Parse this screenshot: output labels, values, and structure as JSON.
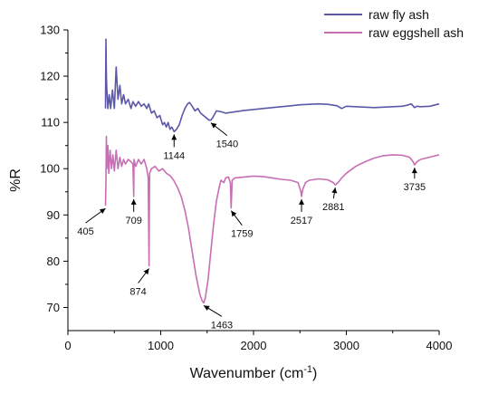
{
  "chart_data": {
    "type": "line",
    "title": "",
    "xlabel": "Wavenumber (cm",
    "xlabel_sup": "-1",
    "xlabel_close": ")",
    "ylabel": "%R",
    "xlim": [
      0,
      4000
    ],
    "ylim": [
      65,
      130
    ],
    "x_ticks": [
      0,
      1000,
      2000,
      3000,
      4000
    ],
    "y_ticks": [
      70,
      80,
      90,
      100,
      110,
      120,
      130
    ],
    "legend_position": "top-right",
    "grid": false,
    "series": [
      {
        "name": "raw fly ash",
        "color": "#5b58a8",
        "points": [
          [
            405,
            113
          ],
          [
            410,
            128
          ],
          [
            415,
            120
          ],
          [
            420,
            117
          ],
          [
            430,
            113
          ],
          [
            445,
            116
          ],
          [
            460,
            113
          ],
          [
            480,
            117
          ],
          [
            500,
            113
          ],
          [
            520,
            122
          ],
          [
            540,
            115
          ],
          [
            560,
            118
          ],
          [
            580,
            114
          ],
          [
            600,
            116
          ],
          [
            620,
            114
          ],
          [
            650,
            115
          ],
          [
            680,
            113
          ],
          [
            700,
            114.5
          ],
          [
            730,
            113.5
          ],
          [
            760,
            114.5
          ],
          [
            790,
            113.5
          ],
          [
            820,
            114
          ],
          [
            850,
            113
          ],
          [
            870,
            114
          ],
          [
            900,
            112
          ],
          [
            930,
            112.5
          ],
          [
            960,
            111
          ],
          [
            990,
            111.5
          ],
          [
            1020,
            109.5
          ],
          [
            1040,
            110
          ],
          [
            1060,
            109
          ],
          [
            1080,
            110
          ],
          [
            1100,
            108.5
          ],
          [
            1120,
            109
          ],
          [
            1144,
            108
          ],
          [
            1170,
            108.5
          ],
          [
            1200,
            109.5
          ],
          [
            1230,
            111.5
          ],
          [
            1260,
            113
          ],
          [
            1290,
            114
          ],
          [
            1310,
            114.3
          ],
          [
            1340,
            113.5
          ],
          [
            1370,
            112.5
          ],
          [
            1400,
            113
          ],
          [
            1430,
            112
          ],
          [
            1460,
            111.5
          ],
          [
            1490,
            111
          ],
          [
            1520,
            110.5
          ],
          [
            1540,
            110.5
          ],
          [
            1560,
            111
          ],
          [
            1600,
            112.5
          ],
          [
            1650,
            112.3
          ],
          [
            1700,
            112
          ],
          [
            1800,
            112.3
          ],
          [
            1900,
            112.6
          ],
          [
            2000,
            112.8
          ],
          [
            2100,
            113
          ],
          [
            2200,
            113.2
          ],
          [
            2300,
            113.4
          ],
          [
            2400,
            113.6
          ],
          [
            2500,
            113.8
          ],
          [
            2600,
            113.9
          ],
          [
            2700,
            114
          ],
          [
            2800,
            113.9
          ],
          [
            2900,
            113.6
          ],
          [
            2950,
            113
          ],
          [
            3000,
            113.5
          ],
          [
            3100,
            113.4
          ],
          [
            3200,
            113.3
          ],
          [
            3300,
            113.2
          ],
          [
            3400,
            113.3
          ],
          [
            3500,
            113.4
          ],
          [
            3600,
            113.5
          ],
          [
            3650,
            113.7
          ],
          [
            3700,
            114
          ],
          [
            3735,
            113.2
          ],
          [
            3760,
            113.5
          ],
          [
            3800,
            113.4
          ],
          [
            3900,
            113.5
          ],
          [
            4000,
            114
          ]
        ]
      },
      {
        "name": "raw eggshell ash",
        "color": "#c86eb4",
        "points": [
          [
            405,
            92
          ],
          [
            410,
            97
          ],
          [
            415,
            107
          ],
          [
            420,
            100
          ],
          [
            430,
            105
          ],
          [
            440,
            99
          ],
          [
            455,
            104
          ],
          [
            470,
            100
          ],
          [
            485,
            103
          ],
          [
            500,
            99.5
          ],
          [
            520,
            104
          ],
          [
            540,
            100
          ],
          [
            560,
            102.5
          ],
          [
            580,
            100.5
          ],
          [
            600,
            102
          ],
          [
            620,
            101
          ],
          [
            650,
            102
          ],
          [
            680,
            101.5
          ],
          [
            700,
            101
          ],
          [
            709,
            94
          ],
          [
            712,
            102
          ],
          [
            730,
            100.5
          ],
          [
            760,
            102
          ],
          [
            790,
            101
          ],
          [
            820,
            102
          ],
          [
            850,
            100
          ],
          [
            865,
            98
          ],
          [
            874,
            79
          ],
          [
            880,
            99
          ],
          [
            900,
            100
          ],
          [
            940,
            100.5
          ],
          [
            980,
            99.5
          ],
          [
            1020,
            100
          ],
          [
            1060,
            99
          ],
          [
            1100,
            98.5
          ],
          [
            1140,
            97.5
          ],
          [
            1180,
            96
          ],
          [
            1220,
            94
          ],
          [
            1260,
            91
          ],
          [
            1300,
            87
          ],
          [
            1340,
            82
          ],
          [
            1380,
            77
          ],
          [
            1420,
            73
          ],
          [
            1445,
            71.5
          ],
          [
            1463,
            71
          ],
          [
            1480,
            72
          ],
          [
            1510,
            76
          ],
          [
            1540,
            82
          ],
          [
            1570,
            88
          ],
          [
            1600,
            93
          ],
          [
            1630,
            96
          ],
          [
            1650,
            97.5
          ],
          [
            1680,
            97
          ],
          [
            1700,
            98
          ],
          [
            1730,
            98.2
          ],
          [
            1750,
            97
          ],
          [
            1759,
            91.5
          ],
          [
            1770,
            97.5
          ],
          [
            1800,
            98
          ],
          [
            1900,
            98.2
          ],
          [
            2000,
            98.4
          ],
          [
            2100,
            98.3
          ],
          [
            2200,
            98
          ],
          [
            2300,
            97.7
          ],
          [
            2400,
            97.5
          ],
          [
            2480,
            97
          ],
          [
            2510,
            95
          ],
          [
            2517,
            94
          ],
          [
            2530,
            95.5
          ],
          [
            2560,
            97
          ],
          [
            2600,
            97.5
          ],
          [
            2700,
            97.8
          ],
          [
            2800,
            97.6
          ],
          [
            2860,
            97
          ],
          [
            2881,
            96.5
          ],
          [
            2910,
            97
          ],
          [
            2950,
            98
          ],
          [
            3000,
            99
          ],
          [
            3100,
            100.5
          ],
          [
            3200,
            101.5
          ],
          [
            3300,
            102.3
          ],
          [
            3400,
            102.8
          ],
          [
            3500,
            103
          ],
          [
            3600,
            102.9
          ],
          [
            3680,
            102.5
          ],
          [
            3720,
            101.5
          ],
          [
            3735,
            100.8
          ],
          [
            3760,
            101.5
          ],
          [
            3800,
            102
          ],
          [
            3900,
            102.5
          ],
          [
            4000,
            103
          ]
        ]
      }
    ],
    "annotations": [
      {
        "label": "405",
        "x": 405,
        "y": 92
      },
      {
        "label": "709",
        "x": 709,
        "y": 94
      },
      {
        "label": "874",
        "x": 874,
        "y": 79
      },
      {
        "label": "1144",
        "x": 1144,
        "y": 108
      },
      {
        "label": "1540",
        "x": 1540,
        "y": 110.5
      },
      {
        "label": "1463",
        "x": 1463,
        "y": 71
      },
      {
        "label": "1759",
        "x": 1759,
        "y": 91.5
      },
      {
        "label": "2517",
        "x": 2517,
        "y": 94
      },
      {
        "label": "2881",
        "x": 2881,
        "y": 96.5
      },
      {
        "label": "3735",
        "x": 3735,
        "y": 100.8
      }
    ]
  }
}
